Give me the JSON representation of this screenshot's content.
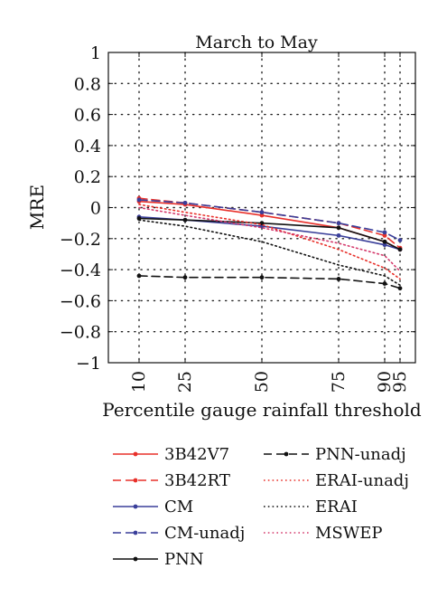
{
  "chart_data": {
    "type": "line",
    "title": "March to May",
    "xlabel": "Percentile gauge rainfall threshold",
    "ylabel": "MRE",
    "x": [
      10,
      25,
      50,
      75,
      90,
      95
    ],
    "xticks": [
      "10",
      "25",
      "50",
      "75",
      "90",
      "95"
    ],
    "ylim": [
      -1,
      1
    ],
    "yticks": [
      "1",
      "0.8",
      "0.6",
      "0.4",
      "0.2",
      "0",
      "−0.2",
      "−0.4",
      "−0.6",
      "−0.8",
      "−1"
    ],
    "grid": true,
    "legend": "below",
    "series": [
      {
        "name": "3B42V7",
        "color": "#e8302a",
        "dash": "solid",
        "marker": true,
        "values": [
          0.04,
          0.02,
          -0.05,
          -0.13,
          -0.22,
          -0.27
        ]
      },
      {
        "name": "3B42RT",
        "color": "#e8302a",
        "dash": "dashed",
        "marker": true,
        "values": [
          0.06,
          0.03,
          -0.03,
          -0.1,
          -0.18,
          -0.26
        ]
      },
      {
        "name": "CM",
        "color": "#3a3f9a",
        "dash": "solid",
        "marker": true,
        "values": [
          -0.06,
          -0.08,
          -0.12,
          -0.18,
          -0.24,
          -0.27
        ]
      },
      {
        "name": "CM-unadj",
        "color": "#3a3f9a",
        "dash": "dashed",
        "marker": true,
        "values": [
          0.05,
          0.03,
          -0.03,
          -0.1,
          -0.16,
          -0.21
        ]
      },
      {
        "name": "PNN",
        "color": "#111111",
        "dash": "solid",
        "marker": true,
        "values": [
          -0.07,
          -0.08,
          -0.1,
          -0.13,
          -0.22,
          -0.27
        ]
      },
      {
        "name": "PNN-unadj",
        "color": "#111111",
        "dash": "dashed",
        "marker": true,
        "values": [
          -0.44,
          -0.45,
          -0.45,
          -0.46,
          -0.49,
          -0.52
        ]
      },
      {
        "name": "ERAI-unadj",
        "color": "#e8302a",
        "dash": "dotted",
        "marker": false,
        "values": [
          0.02,
          -0.03,
          -0.11,
          -0.27,
          -0.39,
          -0.46
        ]
      },
      {
        "name": "ERAI",
        "color": "#111111",
        "dash": "dotted",
        "marker": false,
        "values": [
          -0.08,
          -0.12,
          -0.22,
          -0.37,
          -0.44,
          -0.5
        ]
      },
      {
        "name": "MSWEP",
        "color": "#d4386b",
        "dash": "dotted",
        "marker": false,
        "values": [
          0.0,
          -0.05,
          -0.13,
          -0.23,
          -0.31,
          -0.41
        ]
      }
    ]
  }
}
